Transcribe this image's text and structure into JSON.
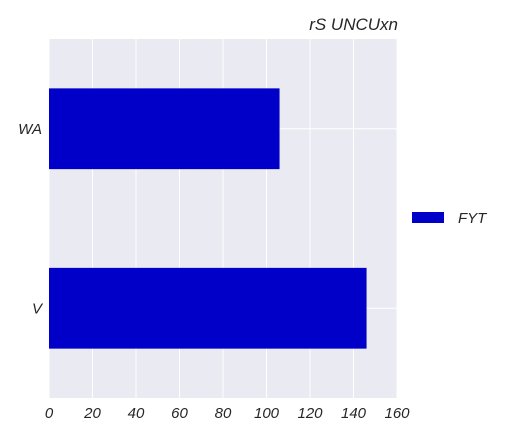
{
  "chart_data": {
    "type": "bar",
    "orientation": "horizontal",
    "title": "rS UNCUxn",
    "xlabel": "",
    "ylabel": "",
    "categories": [
      "WA",
      "V"
    ],
    "series": [
      {
        "name": "FYT",
        "values": [
          106,
          146
        ],
        "color": "#0000c8"
      }
    ],
    "xlim": [
      0,
      160
    ],
    "x_ticks": [
      0,
      20,
      40,
      60,
      80,
      100,
      120,
      140,
      160
    ],
    "grid": true,
    "background_color": "#eaeaf2",
    "legend_position": "right"
  }
}
